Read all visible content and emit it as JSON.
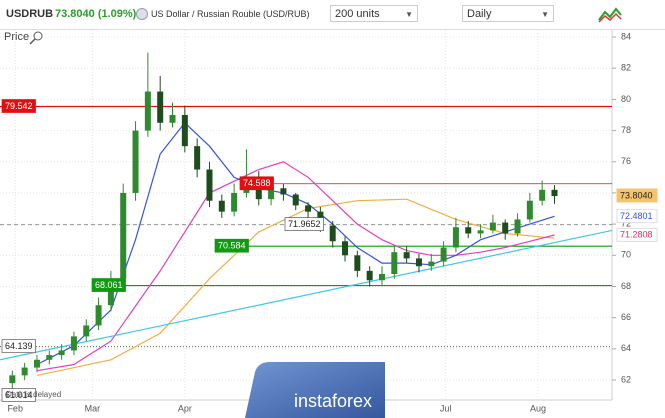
{
  "header": {
    "symbol": "USDRUB",
    "price": "73.8040 (1.09%)",
    "description": "US Dollar / Russian Rouble (USD/RUB)",
    "units": "200 units",
    "interval": "Daily",
    "panel": "Price"
  },
  "watermark": "instaforex",
  "note": "Data is delayed",
  "chart_data": {
    "type": "candlestick",
    "up_color": "#2f8a2f",
    "down_color": "#1d4d1d",
    "x": [
      0,
      3,
      6,
      9,
      12,
      15,
      18,
      21,
      24,
      27,
      30,
      33,
      36,
      39,
      42,
      45,
      48,
      51,
      54,
      57,
      60,
      63,
      66,
      69,
      72,
      75,
      78,
      81,
      84,
      87,
      90,
      93,
      96,
      99,
      102,
      105,
      108,
      111,
      114,
      117,
      120,
      123,
      126,
      129,
      132
    ],
    "open": [
      61.8,
      62.3,
      62.8,
      63.3,
      63.6,
      63.9,
      64.8,
      65.5,
      66.8,
      68.5,
      74,
      78,
      80.5,
      78.5,
      79,
      77,
      75.5,
      73.5,
      72.8,
      74,
      75,
      73.6,
      74.3,
      73.9,
      73.2,
      72.8,
      71.9,
      70.9,
      70,
      69,
      68.4,
      68.8,
      70.2,
      69.8,
      69.3,
      69.6,
      70.5,
      71.8,
      71.4,
      71.6,
      72.1,
      71.4,
      72.3,
      73.5,
      74.2
    ],
    "high": [
      62.6,
      63.1,
      63.6,
      63.9,
      64.3,
      65.1,
      65.9,
      67.3,
      69.0,
      74.6,
      78.6,
      83.0,
      81.5,
      79.8,
      79.6,
      77.5,
      76.0,
      73.9,
      74.6,
      76.8,
      75.4,
      74.8,
      74.6,
      74.0,
      73.4,
      73.1,
      72.2,
      71.2,
      70.3,
      69.3,
      69.3,
      70.6,
      70.6,
      70.1,
      70.1,
      70.9,
      72.4,
      72.2,
      72.0,
      72.6,
      72.3,
      72.7,
      74.0,
      74.8,
      74.5
    ],
    "low": [
      61.0,
      62.0,
      62.5,
      63.0,
      63.3,
      63.6,
      64.5,
      65.2,
      66.4,
      68.1,
      73.5,
      77.6,
      78.0,
      78.2,
      76.6,
      75.0,
      73.1,
      72.4,
      72.5,
      73.7,
      73.2,
      73.2,
      73.5,
      72.9,
      72.3,
      71.5,
      70.5,
      69.6,
      68.6,
      68.0,
      68.1,
      68.5,
      69.5,
      68.9,
      69.0,
      69.3,
      70.2,
      71.1,
      71.1,
      71.4,
      71.0,
      71.2,
      72.1,
      73.2,
      73.3
    ],
    "close": [
      62.3,
      62.8,
      63.3,
      63.6,
      63.9,
      64.8,
      65.5,
      66.8,
      68.5,
      74,
      78,
      80.5,
      78.5,
      79,
      77,
      75.5,
      73.5,
      72.8,
      74,
      75,
      73.6,
      74.3,
      73.9,
      73.2,
      72.8,
      71.9,
      70.9,
      70,
      69,
      68.4,
      68.8,
      70.2,
      69.8,
      69.3,
      69.6,
      70.5,
      71.8,
      71.4,
      71.6,
      72.1,
      71.4,
      72.3,
      73.5,
      74.2,
      73.8
    ],
    "lines": [
      {
        "color": "#f0b040",
        "x": [
          6,
          24,
          36,
          48,
          60,
          72,
          84,
          96,
          108,
          120,
          132
        ],
        "values": [
          62.3,
          63.3,
          65,
          68.5,
          71.5,
          73,
          73.5,
          73.6,
          72.3,
          71.4,
          71.1
        ]
      },
      {
        "color": "#e040c0",
        "x": [
          6,
          15,
          24,
          36,
          48,
          60,
          66,
          72,
          78,
          84,
          90,
          96,
          102,
          108,
          114,
          120,
          126,
          132
        ],
        "values": [
          62.6,
          63,
          64.5,
          69,
          74,
          75.5,
          76,
          75,
          73.5,
          72,
          71,
          70.3,
          70,
          70,
          70.2,
          70.5,
          70.9,
          71.3
        ]
      },
      {
        "color": "#3355dd",
        "x": [
          6,
          15,
          24,
          30,
          36,
          42,
          48,
          54,
          60,
          66,
          72,
          78,
          84,
          90,
          96,
          102,
          108,
          114,
          120,
          126,
          132
        ],
        "values": [
          63,
          64.2,
          66.5,
          71,
          76.5,
          78.5,
          77,
          75,
          74.3,
          74,
          73.3,
          72,
          70.5,
          69.5,
          69.5,
          69.4,
          70,
          71,
          71.5,
          72,
          72.5
        ]
      },
      {
        "color": "#3cc8e8",
        "x": [
          -3,
          146
        ],
        "values": [
          63.3,
          71.6
        ]
      }
    ],
    "levels": [
      {
        "value": 79.542,
        "color": "#e01010",
        "style": "solid"
      },
      {
        "value": 74.588,
        "color": "#e01010",
        "style": "solid"
      },
      {
        "value": 71.9652,
        "color": "#888888",
        "style": "dashed"
      },
      {
        "value": 70.584,
        "color": "#119911",
        "style": "solid"
      },
      {
        "value": 68.061,
        "color": "#119911",
        "style": "solid"
      },
      {
        "value": 64.139,
        "color": "#444444",
        "style": "dotted"
      },
      {
        "value": 61.014,
        "color": "#444444",
        "style": "none"
      }
    ],
    "price_tags": [
      {
        "value": 73.804,
        "label": "73.8040",
        "color": "#f5c46a"
      },
      {
        "value": 72.4801,
        "label": "72.4801",
        "color": "#3355dd"
      },
      {
        "value": 71.2808,
        "label": "71.2808",
        "color": "#e03060"
      }
    ],
    "xlim": [
      -3,
      146
    ],
    "ylim": [
      60.72,
      84.45
    ],
    "xticks": [
      {
        "value": 0.7,
        "label": "Feb"
      },
      {
        "value": 19.5,
        "label": "Mar"
      },
      {
        "value": 42,
        "label": "Apr"
      },
      {
        "value": 105.5,
        "label": "Jul"
      },
      {
        "value": 128,
        "label": "Aug"
      }
    ],
    "yticks": [
      62,
      64,
      66,
      68,
      70,
      72,
      74,
      76,
      78,
      80,
      82,
      84
    ],
    "grid": true
  }
}
